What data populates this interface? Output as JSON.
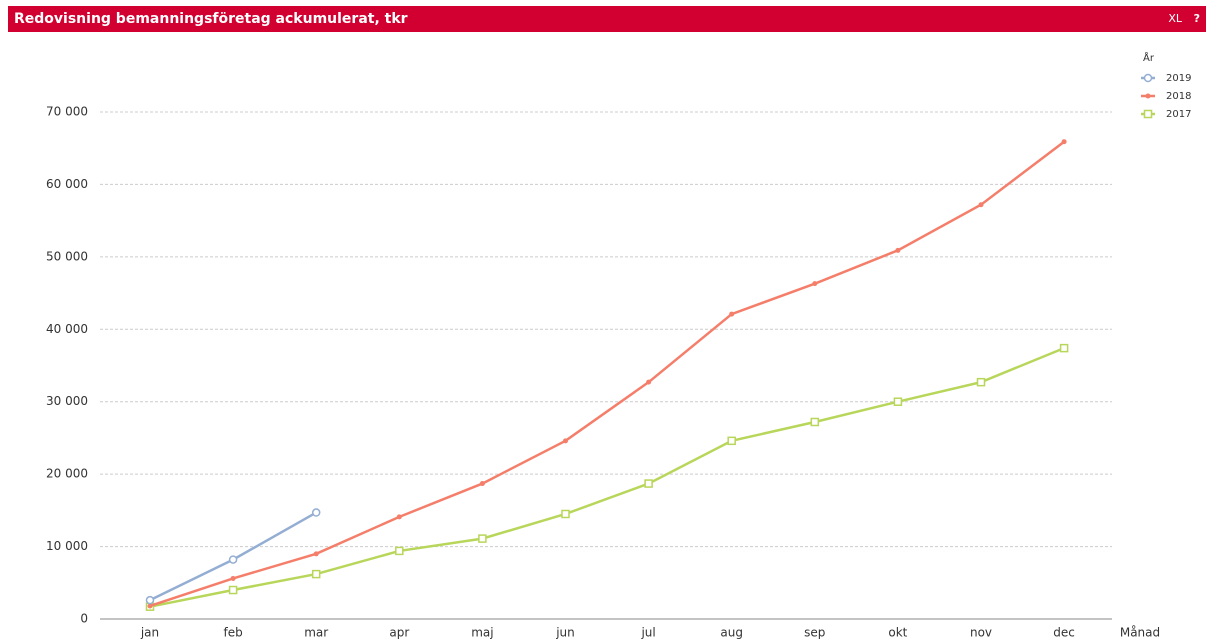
{
  "chart_data": {
    "type": "line",
    "title": "Redovisning bemanningsföretag ackumulerat, tkr",
    "x_label": "Månad",
    "legend_title": "År",
    "legend": "top-right",
    "grid": true,
    "categories": [
      "jan",
      "feb",
      "mar",
      "apr",
      "maj",
      "jun",
      "jul",
      "aug",
      "sep",
      "okt",
      "nov",
      "dec"
    ],
    "ylim": [
      0,
      70000
    ],
    "yticks": [
      0,
      {
        "value": 10000,
        "label": "10 000"
      },
      {
        "value": 20000,
        "label": "20 000"
      },
      {
        "value": 30000,
        "label": "30 000"
      },
      {
        "value": 40000,
        "label": "40 000"
      },
      {
        "value": 50000,
        "label": "50 000"
      },
      {
        "value": 60000,
        "label": "60 000"
      },
      {
        "value": 70000,
        "label": "70 000"
      }
    ],
    "series": [
      {
        "name": "2019",
        "color": "#94aed3",
        "marker": "circle",
        "values": [
          2600,
          8200,
          14700,
          null,
          null,
          null,
          null,
          null,
          null,
          null,
          null,
          null
        ]
      },
      {
        "name": "2018",
        "color": "#f57e6a",
        "marker": "dot",
        "values": [
          1800,
          5600,
          9000,
          14100,
          18700,
          24600,
          32700,
          42100,
          46300,
          50900,
          57200,
          65900
        ]
      },
      {
        "name": "2017",
        "color": "#b8d65a",
        "marker": "square",
        "values": [
          1700,
          4000,
          6200,
          9400,
          11100,
          14500,
          18700,
          24600,
          27200,
          30000,
          32700,
          37400
        ]
      }
    ]
  },
  "toolbar": [
    "XL",
    "?"
  ]
}
